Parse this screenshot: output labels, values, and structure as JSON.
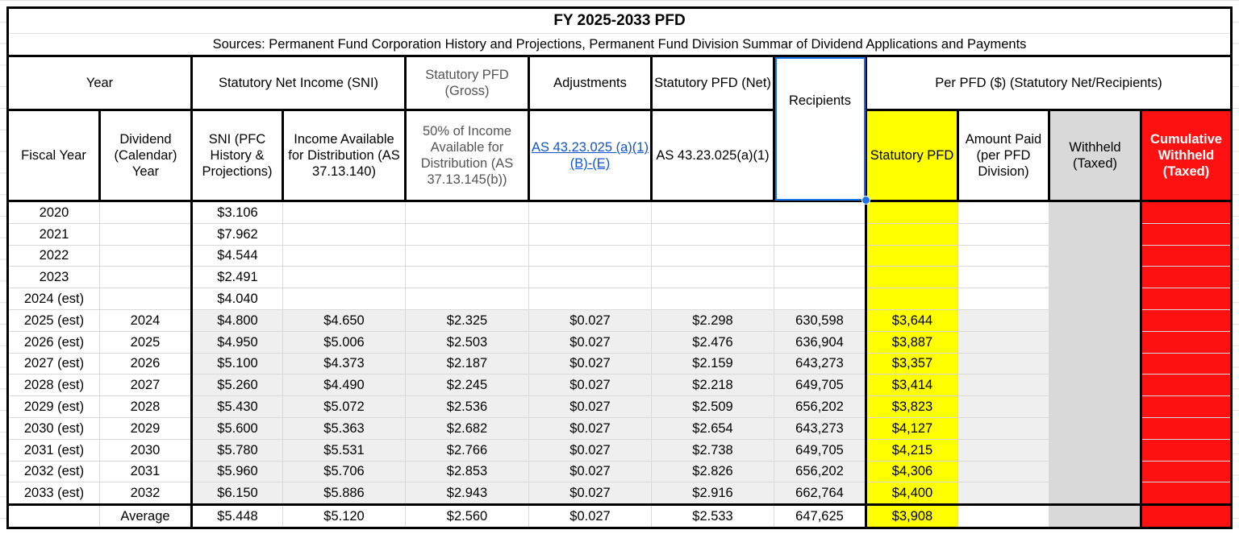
{
  "title": "FY 2025-2033 PFD",
  "sources": "Sources: Permanent Fund Corporation History and Projections, Permanent Fund Division Summar of Dividend Applications and Payments",
  "header1": {
    "year": "Year",
    "sni": "Statutory Net Income (SNI)",
    "gross": "Statutory PFD (Gross)",
    "adjustments": "Adjustments",
    "net": "Statutory PFD (Net)",
    "recipients": "Recipients",
    "per_pfd": "Per PFD ($) (Statutory Net/Recipients)"
  },
  "header2": {
    "fiscal_year": "Fiscal Year",
    "dividend_year": "Dividend (Calendar) Year",
    "sni_pfc": "SNI (PFC History & Projections)",
    "income_available": "Income Available for Distribution (AS 37.13.140)",
    "fifty_pct": "50% of Income Available for Distribution (AS 37.13.145(b))",
    "adjustments_link": "AS 43.23.025 (a)(1)(B)-(E)",
    "net_statute": "AS 43.23.025(a)(1)",
    "statutory_pfd": "Statutory PFD",
    "amount_paid": "Amount Paid (per PFD Division)",
    "withheld": "Withheld (Taxed)",
    "cumulative_withheld": "Cumulative Withheld (Taxed)"
  },
  "colors": {
    "yellow": "#ffff00",
    "withheld": "#d9d9d9",
    "cumulative": "#ff1111",
    "link": "#1155cc"
  },
  "rows": [
    {
      "fy": "2020",
      "dy": "",
      "sni": "$3.106",
      "income": "",
      "gross": "",
      "adj": "",
      "net": "",
      "recipients": "",
      "per_pfd": "",
      "paid": "",
      "withheld": "",
      "cumulative": ""
    },
    {
      "fy": "2021",
      "dy": "",
      "sni": "$7.962",
      "income": "",
      "gross": "",
      "adj": "",
      "net": "",
      "recipients": "",
      "per_pfd": "",
      "paid": "",
      "withheld": "",
      "cumulative": ""
    },
    {
      "fy": "2022",
      "dy": "",
      "sni": "$4.544",
      "income": "",
      "gross": "",
      "adj": "",
      "net": "",
      "recipients": "",
      "per_pfd": "",
      "paid": "",
      "withheld": "",
      "cumulative": ""
    },
    {
      "fy": "2023",
      "dy": "",
      "sni": "$2.491",
      "income": "",
      "gross": "",
      "adj": "",
      "net": "",
      "recipients": "",
      "per_pfd": "",
      "paid": "",
      "withheld": "",
      "cumulative": ""
    },
    {
      "fy": "2024 (est)",
      "dy": "",
      "sni": "$4.040",
      "income": "",
      "gross": "",
      "adj": "",
      "net": "",
      "recipients": "",
      "per_pfd": "",
      "paid": "",
      "withheld": "",
      "cumulative": ""
    },
    {
      "fy": "2025 (est)",
      "dy": "2024",
      "sni": "$4.800",
      "income": "$4.650",
      "gross": "$2.325",
      "adj": "$0.027",
      "net": "$2.298",
      "recipients": "630,598",
      "per_pfd": "$3,644",
      "paid": "",
      "withheld": "",
      "cumulative": ""
    },
    {
      "fy": "2026 (est)",
      "dy": "2025",
      "sni": "$4.950",
      "income": "$5.006",
      "gross": "$2.503",
      "adj": "$0.027",
      "net": "$2.476",
      "recipients": "636,904",
      "per_pfd": "$3,887",
      "paid": "",
      "withheld": "",
      "cumulative": ""
    },
    {
      "fy": "2027 (est)",
      "dy": "2026",
      "sni": "$5.100",
      "income": "$4.373",
      "gross": "$2.187",
      "adj": "$0.027",
      "net": "$2.159",
      "recipients": "643,273",
      "per_pfd": "$3,357",
      "paid": "",
      "withheld": "",
      "cumulative": ""
    },
    {
      "fy": "2028 (est)",
      "dy": "2027",
      "sni": "$5.260",
      "income": "$4.490",
      "gross": "$2.245",
      "adj": "$0.027",
      "net": "$2.218",
      "recipients": "649,705",
      "per_pfd": "$3,414",
      "paid": "",
      "withheld": "",
      "cumulative": ""
    },
    {
      "fy": "2029 (est)",
      "dy": "2028",
      "sni": "$5.430",
      "income": "$5.072",
      "gross": "$2.536",
      "adj": "$0.027",
      "net": "$2.509",
      "recipients": "656,202",
      "per_pfd": "$3,823",
      "paid": "",
      "withheld": "",
      "cumulative": ""
    },
    {
      "fy": "2030 (est)",
      "dy": "2029",
      "sni": "$5.600",
      "income": "$5.363",
      "gross": "$2.682",
      "adj": "$0.027",
      "net": "$2.654",
      "recipients": "643,273",
      "per_pfd": "$4,127",
      "paid": "",
      "withheld": "",
      "cumulative": ""
    },
    {
      "fy": "2031 (est)",
      "dy": "2030",
      "sni": "$5.780",
      "income": "$5.531",
      "gross": "$2.766",
      "adj": "$0.027",
      "net": "$2.738",
      "recipients": "649,705",
      "per_pfd": "$4,215",
      "paid": "",
      "withheld": "",
      "cumulative": ""
    },
    {
      "fy": "2032 (est)",
      "dy": "2031",
      "sni": "$5.960",
      "income": "$5.706",
      "gross": "$2.853",
      "adj": "$0.027",
      "net": "$2.826",
      "recipients": "656,202",
      "per_pfd": "$4,306",
      "paid": "",
      "withheld": "",
      "cumulative": ""
    },
    {
      "fy": "2033 (est)",
      "dy": "2032",
      "sni": "$6.150",
      "income": "$5.886",
      "gross": "$2.943",
      "adj": "$0.027",
      "net": "$2.916",
      "recipients": "662,764",
      "per_pfd": "$4,400",
      "paid": "",
      "withheld": "",
      "cumulative": ""
    }
  ],
  "average": {
    "fy": "",
    "dy": "Average",
    "sni": "$5.448",
    "income": "$5.120",
    "gross": "$2.560",
    "adj": "$0.027",
    "net": "$2.533",
    "recipients": "647,625",
    "per_pfd": "$3,908",
    "paid": "",
    "withheld": "",
    "cumulative": ""
  }
}
